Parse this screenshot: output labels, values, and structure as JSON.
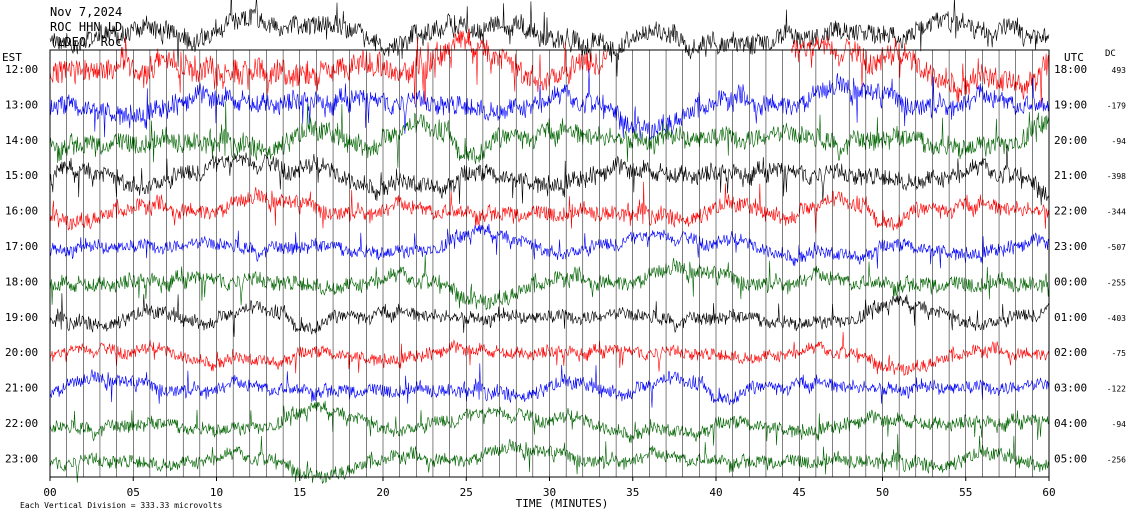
{
  "header": {
    "date": "Nov 7,2024",
    "station": "ROC HHN LD",
    "network": "(LDEO, Roc"
  },
  "left_axis_title": "EST",
  "right_axis_title": "UTC",
  "offset_title": "DC",
  "footer": {
    "xlabel": "TIME (MINUTES)",
    "scale_note": "Each Vertical Division =  333.33 microvolts"
  },
  "colors": {
    "cycle": [
      "#000000",
      "#ff0000",
      "#0000ff",
      "#006400"
    ],
    "grid": "#000000"
  },
  "chart_data": {
    "type": "line",
    "title": "",
    "xlim": [
      0,
      60
    ],
    "x_ticks": [
      "00",
      "05",
      "10",
      "15",
      "20",
      "25",
      "30",
      "35",
      "40",
      "45",
      "50",
      "55",
      "60"
    ],
    "x_tick_values": [
      0,
      5,
      10,
      15,
      20,
      25,
      30,
      35,
      40,
      45,
      50,
      55,
      60
    ],
    "grid_vertical_every_minutes": 1,
    "rows": [
      {
        "est": "12:00",
        "utc": "18:00",
        "dc": "493",
        "color": "#ff0000",
        "amplitude": 22,
        "gap_minutes": [
          33.5,
          44.5
        ]
      },
      {
        "est": "13:00",
        "utc": "19:00",
        "dc": "-179",
        "color": "#0000ff",
        "amplitude": 18
      },
      {
        "est": "14:00",
        "utc": "20:00",
        "dc": "-94",
        "color": "#006400",
        "amplitude": 18
      },
      {
        "est": "15:00",
        "utc": "21:00",
        "dc": "-398",
        "color": "#000000",
        "amplitude": 16
      },
      {
        "est": "16:00",
        "utc": "22:00",
        "dc": "-344",
        "color": "#ff0000",
        "amplitude": 14
      },
      {
        "est": "17:00",
        "utc": "23:00",
        "dc": "-507",
        "color": "#0000ff",
        "amplitude": 12
      },
      {
        "est": "18:00",
        "utc": "00:00",
        "dc": "-255",
        "color": "#006400",
        "amplitude": 14
      },
      {
        "est": "19:00",
        "utc": "01:00",
        "dc": "-403",
        "color": "#000000",
        "amplitude": 12
      },
      {
        "est": "20:00",
        "utc": "02:00",
        "dc": "-75",
        "color": "#ff0000",
        "amplitude": 11
      },
      {
        "est": "21:00",
        "utc": "03:00",
        "dc": "-122",
        "color": "#0000ff",
        "amplitude": 12
      },
      {
        "est": "22:00",
        "utc": "04:00",
        "dc": "-94",
        "color": "#006400",
        "amplitude": 12
      },
      {
        "est": "23:00",
        "utc": "05:00",
        "dc": "-256",
        "color": "#006400",
        "amplitude": 12
      }
    ]
  }
}
